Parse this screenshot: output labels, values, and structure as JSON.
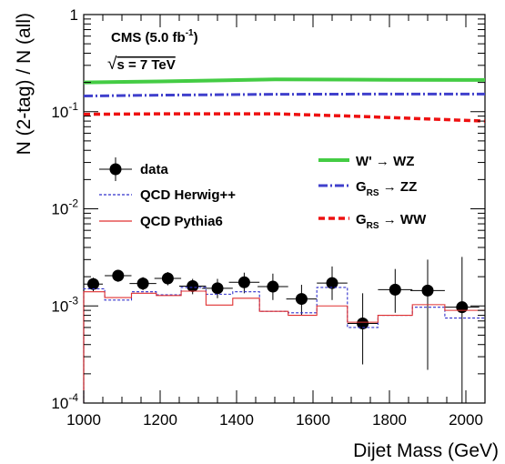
{
  "chart_data": {
    "type": "line",
    "xlabel": "Dijet Mass (GeV)",
    "ylabel": "N (2-tag) / N (all)",
    "xlim": [
      1000,
      2050
    ],
    "ylim": [
      0.0001,
      1
    ],
    "yscale": "log",
    "x_ticks": [
      {
        "value": 1000,
        "label": "1000"
      },
      {
        "value": 1200,
        "label": "1200"
      },
      {
        "value": 1400,
        "label": "1400"
      },
      {
        "value": 1600,
        "label": "1600"
      },
      {
        "value": 1800,
        "label": "1800"
      },
      {
        "value": 2000,
        "label": "2000"
      }
    ],
    "y_ticks": [
      {
        "value": 0.0001,
        "base": "10",
        "exp": "-4"
      },
      {
        "value": 0.001,
        "base": "10",
        "exp": "-3"
      },
      {
        "value": 0.01,
        "base": "10",
        "exp": "-2"
      },
      {
        "value": 0.1,
        "base": "10",
        "exp": "-1"
      },
      {
        "value": 1,
        "base": "1",
        "exp": ""
      }
    ],
    "annotation": {
      "line1_main": "CMS (5.0 fb",
      "line1_sup": "-1",
      "line1_end": ")",
      "line2_sqrt": "√",
      "line2_text": "s = 7 TeV"
    },
    "series": [
      {
        "name": "data",
        "kind": "points",
        "color": "#000000",
        "points": [
          {
            "x": 1025,
            "y": 0.00168,
            "xerr": 25,
            "ylow": 0.00142,
            "yhigh": 0.00195
          },
          {
            "x": 1090,
            "y": 0.00205,
            "xerr": 35,
            "ylow": 0.00177,
            "yhigh": 0.00235
          },
          {
            "x": 1155,
            "y": 0.0017,
            "xerr": 35,
            "ylow": 0.00145,
            "yhigh": 0.00198
          },
          {
            "x": 1220,
            "y": 0.00192,
            "xerr": 35,
            "ylow": 0.00163,
            "yhigh": 0.00223
          },
          {
            "x": 1285,
            "y": 0.0016,
            "xerr": 35,
            "ylow": 0.00132,
            "yhigh": 0.0019
          },
          {
            "x": 1350,
            "y": 0.00152,
            "xerr": 40,
            "ylow": 0.0012,
            "yhigh": 0.0019
          },
          {
            "x": 1420,
            "y": 0.00175,
            "xerr": 40,
            "ylow": 0.00135,
            "yhigh": 0.0022
          },
          {
            "x": 1495,
            "y": 0.00158,
            "xerr": 40,
            "ylow": 0.00115,
            "yhigh": 0.00215
          },
          {
            "x": 1570,
            "y": 0.00118,
            "xerr": 40,
            "ylow": 0.0008,
            "yhigh": 0.00165
          },
          {
            "x": 1650,
            "y": 0.00172,
            "xerr": 40,
            "ylow": 0.00115,
            "yhigh": 0.00255
          },
          {
            "x": 1730,
            "y": 0.00066,
            "xerr": 40,
            "ylow": 0.00025,
            "yhigh": 0.00135
          },
          {
            "x": 1815,
            "y": 0.00147,
            "xerr": 45,
            "ylow": 0.00085,
            "yhigh": 0.0024
          },
          {
            "x": 1900,
            "y": 0.00144,
            "xerr": 45,
            "ylow": 0.00022,
            "yhigh": 0.003
          },
          {
            "x": 1990,
            "y": 0.00097,
            "xerr": 45,
            "ylow": 0.0001,
            "yhigh": 0.0032
          }
        ]
      },
      {
        "name": "QCD Herwig++",
        "kind": "step",
        "color": "#3030cc",
        "dash": "3,2",
        "edges": [
          1000,
          1055,
          1125,
          1190,
          1255,
          1320,
          1390,
          1460,
          1535,
          1610,
          1690,
          1770,
          1860,
          1945,
          2050
        ],
        "values": [
          0.0015,
          0.00115,
          0.0014,
          0.0013,
          0.00155,
          0.00132,
          0.0014,
          0.00088,
          0.00085,
          0.00155,
          0.0006,
          0.0008,
          0.00097,
          0.00075
        ]
      },
      {
        "name": "QCD Pythia6",
        "kind": "step",
        "color": "#e03030",
        "dash": "",
        "edges": [
          1000,
          1055,
          1125,
          1190,
          1255,
          1320,
          1390,
          1460,
          1535,
          1610,
          1690,
          1770,
          1860,
          1945,
          2050
        ],
        "values": [
          0.0014,
          0.00122,
          0.00135,
          0.00128,
          0.00142,
          0.00102,
          0.0012,
          0.00088,
          0.0008,
          0.001,
          0.00068,
          0.0008,
          0.00103,
          0.0009
        ]
      },
      {
        "name": "W' → WZ",
        "kind": "line",
        "color": "#44cc44",
        "width": 4,
        "dash": "",
        "x": [
          1000,
          1200,
          1500,
          1800,
          2050
        ],
        "y": [
          0.2,
          0.205,
          0.215,
          0.213,
          0.212
        ]
      },
      {
        "name": "G_RS → ZZ",
        "kind": "line",
        "color": "#4040cc",
        "width": 3,
        "dash": "10,3,2,3",
        "x": [
          1000,
          1200,
          1500,
          1800,
          2050
        ],
        "y": [
          0.145,
          0.148,
          0.151,
          0.152,
          0.152
        ]
      },
      {
        "name": "G_RS → WW",
        "kind": "line",
        "color": "#ee1111",
        "width": 3.5,
        "dash": "7,4",
        "x": [
          1000,
          1200,
          1500,
          1700,
          2050
        ],
        "y": [
          0.094,
          0.095,
          0.095,
          0.09,
          0.08
        ]
      }
    ],
    "legend": {
      "left": [
        {
          "label": "data",
          "series": "data"
        },
        {
          "label": "QCD Herwig++",
          "series": "QCD Herwig++"
        },
        {
          "label": "QCD Pythia6",
          "series": "QCD Pythia6"
        }
      ],
      "right": [
        {
          "main": "W'",
          "arrow": "→",
          "tail": "WZ",
          "sub": "",
          "series": "W' → WZ"
        },
        {
          "main": "G",
          "sub": "RS",
          "arrow": "→",
          "tail": "ZZ",
          "series": "G_RS → ZZ"
        },
        {
          "main": "G",
          "sub": "RS",
          "arrow": "→",
          "tail": "WW",
          "series": "G_RS → WW"
        }
      ]
    }
  }
}
